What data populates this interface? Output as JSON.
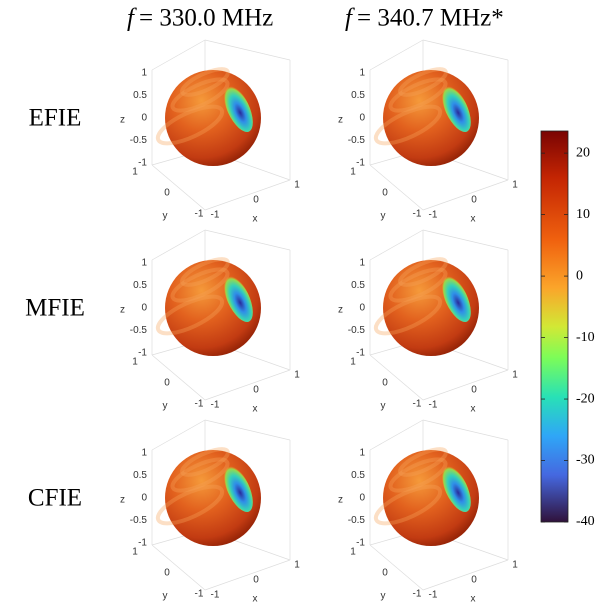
{
  "columns": [
    {
      "symbol": "f",
      "text": "= 330.0 MHz"
    },
    {
      "symbol": "f",
      "text": "= 340.7 MHz*"
    }
  ],
  "rows": [
    "EFIE",
    "MFIE",
    "CFIE"
  ],
  "axes": {
    "xlabel": "x",
    "ylabel": "y",
    "zlabel": "z",
    "xticks": [
      -1,
      0,
      1
    ],
    "yticks": [
      1,
      0,
      -1
    ],
    "zticks": [
      1,
      0.5,
      0,
      -0.5,
      -1
    ]
  },
  "colorbar": {
    "lim": [
      -40,
      23.6
    ],
    "ticks": [
      20,
      10,
      0,
      -10,
      -20,
      -30,
      -40
    ]
  }
}
